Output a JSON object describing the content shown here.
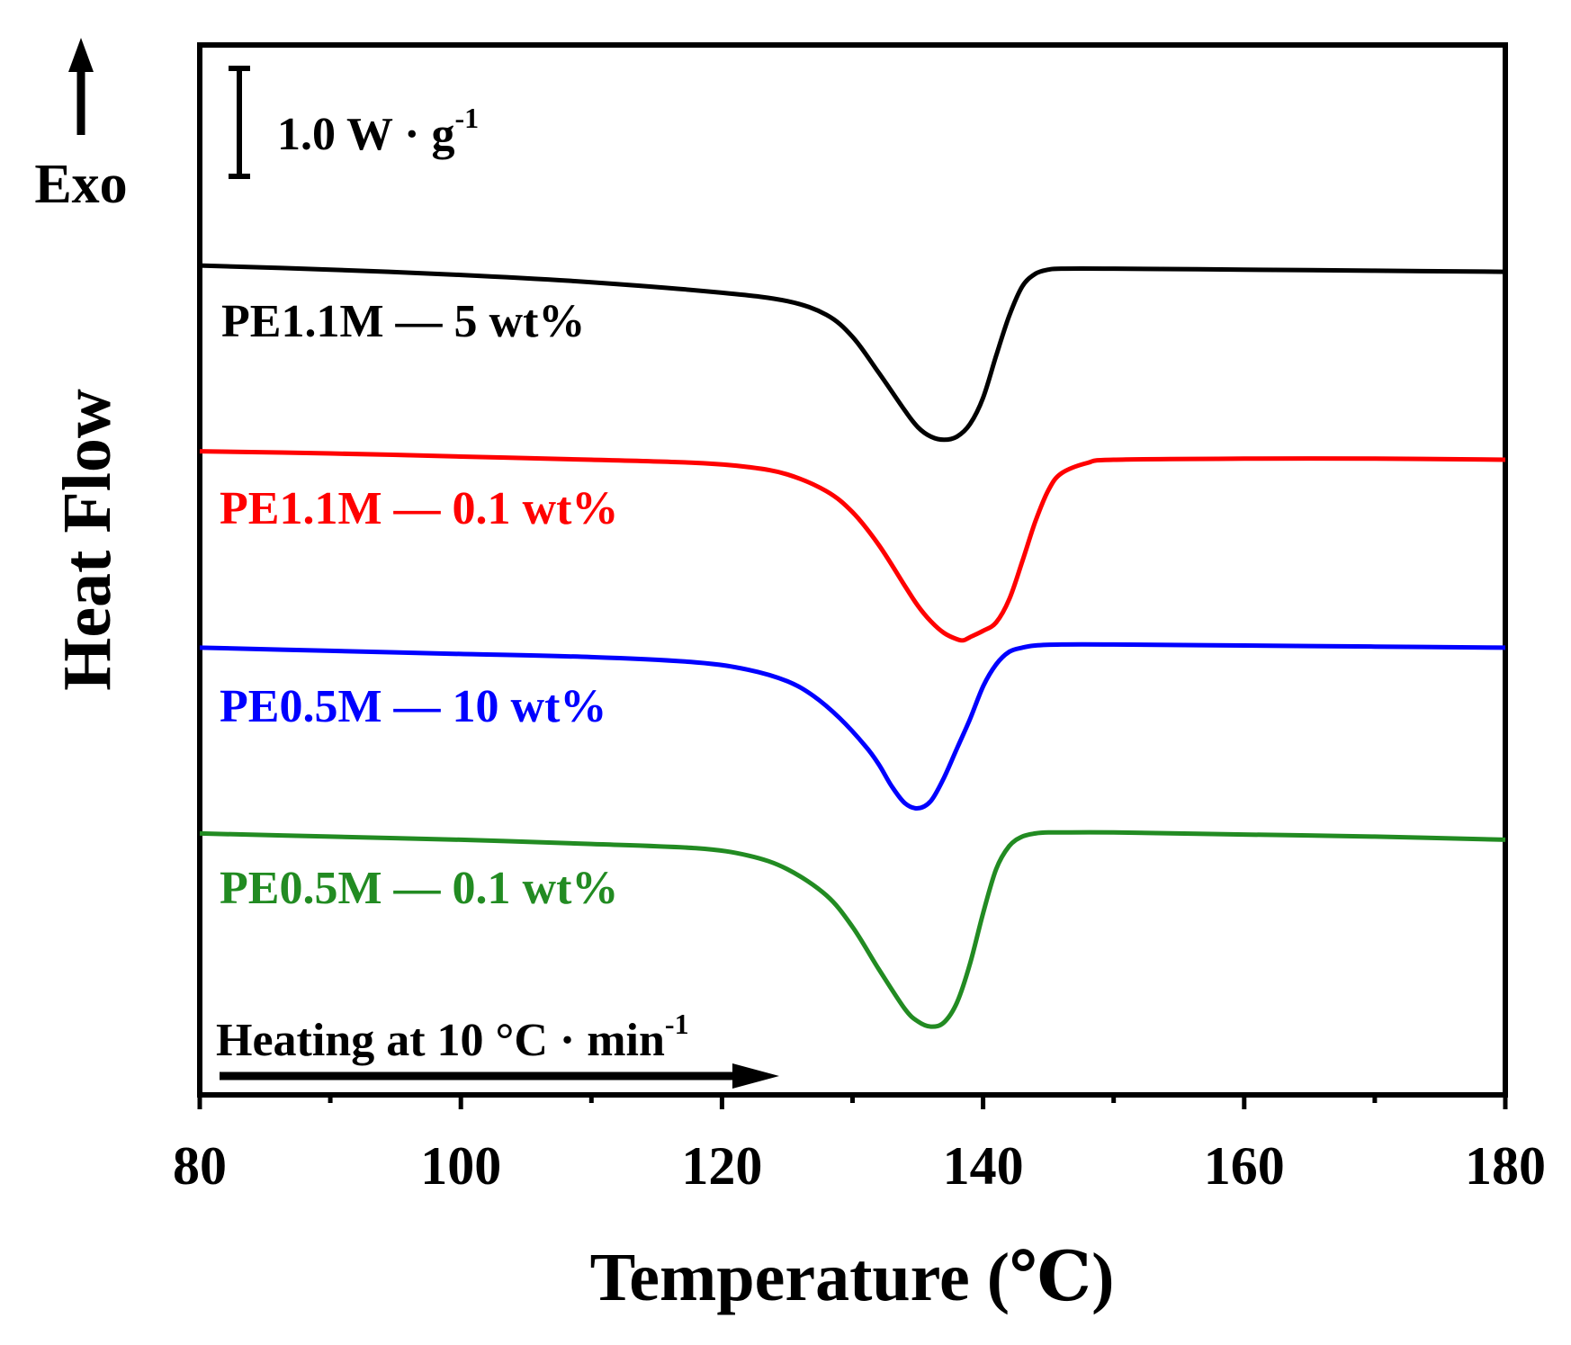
{
  "chart_data": {
    "type": "line",
    "title": "",
    "xlabel": "Temperature (℃)",
    "ylabel": "Heat Flow",
    "xlim": [
      80,
      180
    ],
    "xticks": [
      80,
      100,
      120,
      140,
      160,
      180
    ],
    "ylim": [
      0,
      100
    ],
    "y_units": "arbitrary (stacked, offset curves)",
    "exo_label": "Exo",
    "scale_bar_label": "1.0 W · g",
    "scale_bar_sup": "-1",
    "heating_label": "Heating at 10 °C · min",
    "heating_sup": "-1",
    "series": [
      {
        "name": "PE1.1M — 5 wt%",
        "color": "#000000",
        "x": [
          80,
          90,
          100,
          110,
          120,
          125,
          128,
          130,
          132,
          134,
          135,
          136,
          137,
          138,
          139,
          140,
          141,
          142,
          143,
          144,
          145,
          146,
          150,
          160,
          170,
          180
        ],
        "y": [
          79.0,
          78.6,
          78.1,
          77.4,
          76.4,
          75.6,
          74.3,
          72.2,
          68.8,
          65.2,
          63.6,
          62.7,
          62.4,
          62.7,
          63.9,
          66.4,
          70.4,
          74.2,
          77.0,
          78.2,
          78.6,
          78.7,
          78.7,
          78.6,
          78.5,
          78.4
        ]
      },
      {
        "name": "PE1.1M — 0.1 wt%",
        "color": "#ff0000",
        "x": [
          80,
          90,
          100,
          110,
          118,
          122,
          125,
          128,
          130,
          132,
          134,
          135,
          136,
          137,
          138,
          138.5,
          139,
          140,
          141,
          142,
          143,
          144,
          145,
          146,
          148,
          150,
          160,
          170,
          180
        ],
        "y": [
          61.3,
          61.1,
          60.8,
          60.5,
          60.2,
          59.8,
          59.1,
          57.5,
          55.5,
          52.4,
          48.5,
          46.6,
          45.1,
          44.0,
          43.4,
          43.3,
          43.6,
          44.2,
          45.0,
          47.2,
          50.8,
          54.6,
          57.6,
          59.2,
          60.2,
          60.5,
          60.6,
          60.6,
          60.5
        ]
      },
      {
        "name": "PE0.5M — 10 wt%",
        "color": "#0000ff",
        "x": [
          80,
          90,
          100,
          110,
          118,
          122,
          125,
          127,
          129,
          131,
          132,
          133,
          134,
          135,
          136,
          137,
          138,
          139,
          140,
          141,
          142,
          143,
          144,
          146,
          150,
          160,
          170,
          180
        ],
        "y": [
          42.6,
          42.3,
          42.0,
          41.7,
          41.2,
          40.5,
          39.4,
          38.0,
          35.9,
          33.2,
          31.5,
          29.4,
          27.8,
          27.3,
          28.0,
          30.2,
          33.0,
          35.8,
          38.9,
          41.0,
          42.2,
          42.6,
          42.8,
          42.9,
          42.9,
          42.8,
          42.7,
          42.6
        ]
      },
      {
        "name": "PE0.5M — 0.1 wt%",
        "color": "#228B22",
        "x": [
          80,
          90,
          100,
          110,
          118,
          122,
          125,
          128,
          130,
          132,
          134,
          135,
          136,
          137,
          138,
          139,
          140,
          141,
          142,
          143,
          144,
          145,
          146,
          150,
          160,
          170,
          180
        ],
        "y": [
          24.9,
          24.6,
          24.3,
          23.9,
          23.5,
          22.8,
          21.5,
          19.0,
          16.0,
          12.0,
          8.2,
          7.0,
          6.5,
          6.9,
          8.8,
          12.5,
          17.3,
          21.5,
          23.7,
          24.6,
          24.9,
          25.0,
          25.0,
          25.0,
          24.8,
          24.6,
          24.3
        ]
      }
    ],
    "annotations": [
      "PE1.1M — 5 wt%",
      "PE1.1M — 0.1 wt%",
      "PE0.5M — 10 wt%",
      "PE0.5M — 0.1 wt%"
    ],
    "legend": "none",
    "grid": false
  }
}
